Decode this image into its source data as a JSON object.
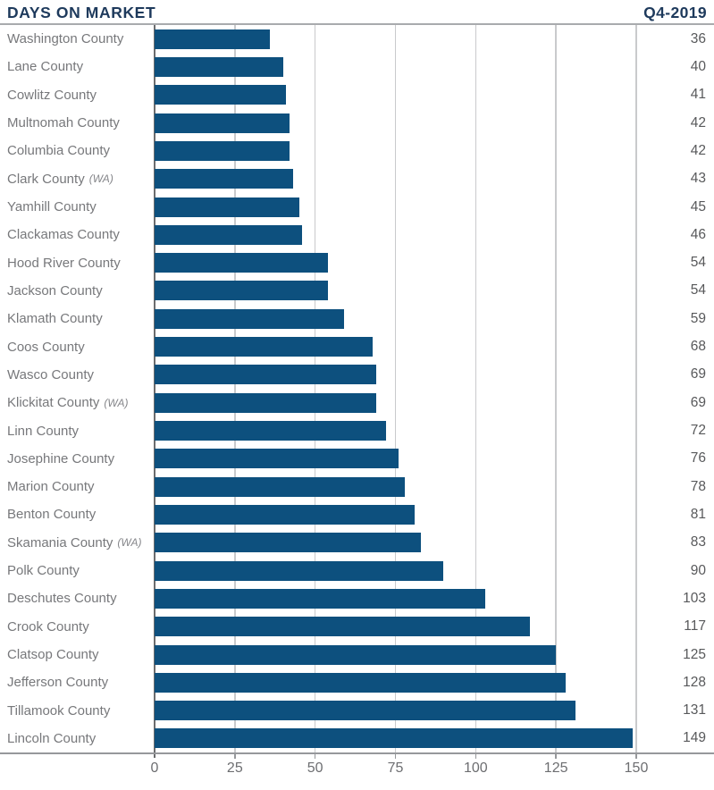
{
  "header": {
    "title": "DAYS ON MARKET",
    "period": "Q4-2019"
  },
  "colors": {
    "accent_navy": "#1e3a5c",
    "bar_blue": "#0d507e"
  },
  "chart_data": {
    "type": "bar",
    "orientation": "horizontal",
    "title": "DAYS ON MARKET",
    "subtitle": "Q4-2019",
    "xlabel": "",
    "ylabel": "",
    "xlim": [
      0,
      150
    ],
    "x_ticks": [
      0,
      25,
      50,
      75,
      100,
      125,
      150
    ],
    "grid": "vertical",
    "legend": "none",
    "value_labels": "right-edge",
    "bar_color": "#0d507e",
    "rows": [
      {
        "label": "Washington County",
        "suffix": "",
        "value": 36
      },
      {
        "label": "Lane County",
        "suffix": "",
        "value": 40
      },
      {
        "label": "Cowlitz County",
        "suffix": "",
        "value": 41
      },
      {
        "label": "Multnomah County",
        "suffix": "",
        "value": 42
      },
      {
        "label": "Columbia County",
        "suffix": "",
        "value": 42
      },
      {
        "label": "Clark County",
        "suffix": "(WA)",
        "value": 43
      },
      {
        "label": "Yamhill County",
        "suffix": "",
        "value": 45
      },
      {
        "label": "Clackamas County",
        "suffix": "",
        "value": 46
      },
      {
        "label": "Hood River County",
        "suffix": "",
        "value": 54
      },
      {
        "label": "Jackson County",
        "suffix": "",
        "value": 54
      },
      {
        "label": "Klamath County",
        "suffix": "",
        "value": 59
      },
      {
        "label": "Coos County",
        "suffix": "",
        "value": 68
      },
      {
        "label": "Wasco County",
        "suffix": "",
        "value": 69
      },
      {
        "label": "Klickitat County",
        "suffix": "(WA)",
        "value": 69
      },
      {
        "label": "Linn County",
        "suffix": "",
        "value": 72
      },
      {
        "label": "Josephine County",
        "suffix": "",
        "value": 76
      },
      {
        "label": "Marion County",
        "suffix": "",
        "value": 78
      },
      {
        "label": "Benton County",
        "suffix": "",
        "value": 81
      },
      {
        "label": "Skamania County",
        "suffix": "(WA)",
        "value": 83
      },
      {
        "label": "Polk County",
        "suffix": "",
        "value": 90
      },
      {
        "label": "Deschutes County",
        "suffix": "",
        "value": 103
      },
      {
        "label": "Crook County",
        "suffix": "",
        "value": 117
      },
      {
        "label": "Clatsop County",
        "suffix": "",
        "value": 125
      },
      {
        "label": "Jefferson County",
        "suffix": "",
        "value": 128
      },
      {
        "label": "Tillamook County",
        "suffix": "",
        "value": 131
      },
      {
        "label": "Lincoln County",
        "suffix": "",
        "value": 149
      }
    ]
  }
}
